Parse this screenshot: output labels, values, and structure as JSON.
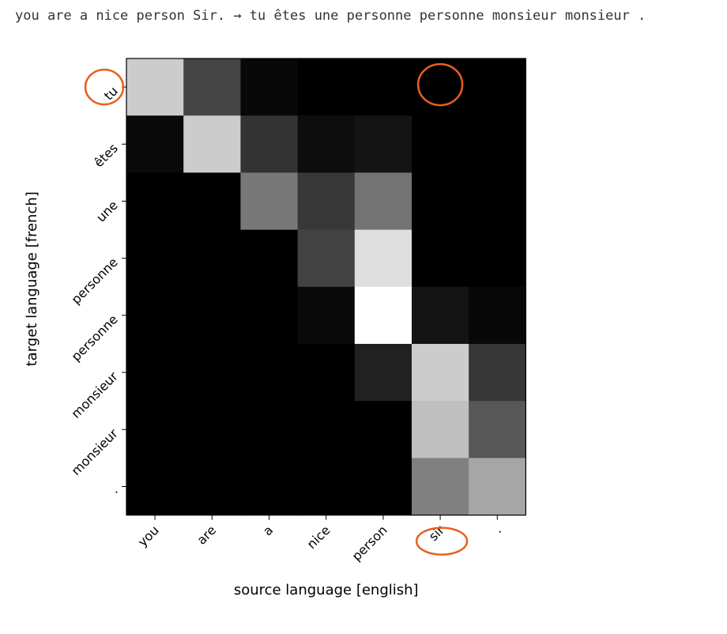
{
  "caption": "you are a nice person Sir. → tu êtes une personne personne monsieur monsieur .",
  "chart_data": {
    "type": "heatmap",
    "title": "",
    "xlabel": "source language [english]",
    "ylabel": "target language [french]",
    "x_categories": [
      "you",
      "are",
      "a",
      "nice",
      "person",
      "sir",
      "."
    ],
    "y_categories": [
      "tu",
      "êtes",
      "une",
      "personne",
      "personne",
      "monsieur",
      "monsieur",
      "."
    ],
    "colormap": "gray",
    "value_range": [
      0,
      1
    ],
    "values": [
      [
        0.8,
        0.27,
        0.03,
        0.0,
        0.0,
        0.0,
        0.0
      ],
      [
        0.04,
        0.8,
        0.2,
        0.05,
        0.08,
        0.0,
        0.0
      ],
      [
        0.0,
        0.0,
        0.47,
        0.22,
        0.45,
        0.0,
        0.0
      ],
      [
        0.0,
        0.0,
        0.0,
        0.26,
        0.87,
        0.0,
        0.0
      ],
      [
        0.0,
        0.0,
        0.0,
        0.04,
        1.0,
        0.08,
        0.03
      ],
      [
        0.0,
        0.0,
        0.0,
        0.0,
        0.13,
        0.8,
        0.21
      ],
      [
        0.0,
        0.0,
        0.0,
        0.0,
        0.0,
        0.75,
        0.34
      ],
      [
        0.0,
        0.0,
        0.0,
        0.0,
        0.0,
        0.5,
        0.65
      ]
    ],
    "annotations": [
      {
        "type": "circle",
        "target": "y-tick",
        "index": 0
      },
      {
        "type": "circle",
        "target": "cell",
        "row": 0,
        "col": 5
      },
      {
        "type": "circle",
        "target": "x-tick",
        "index": 5
      }
    ],
    "annotation_color": "#e8601c"
  }
}
